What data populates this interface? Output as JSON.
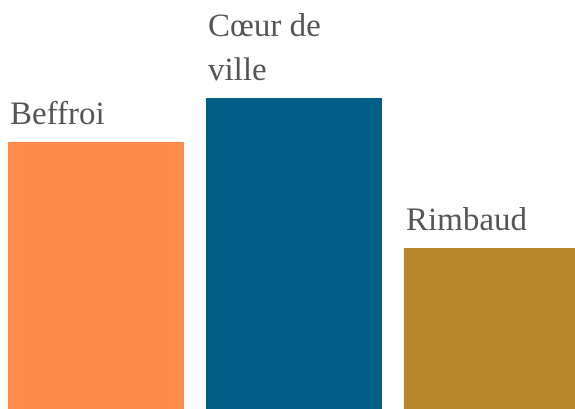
{
  "chart_data": {
    "type": "bar",
    "categories": [
      "Beffroi",
      "Cœur de ville",
      "Rimbaud"
    ],
    "values": [
      267,
      311,
      161
    ],
    "colors": [
      "#ff8c49",
      "#005f87",
      "#b8862b"
    ]
  }
}
